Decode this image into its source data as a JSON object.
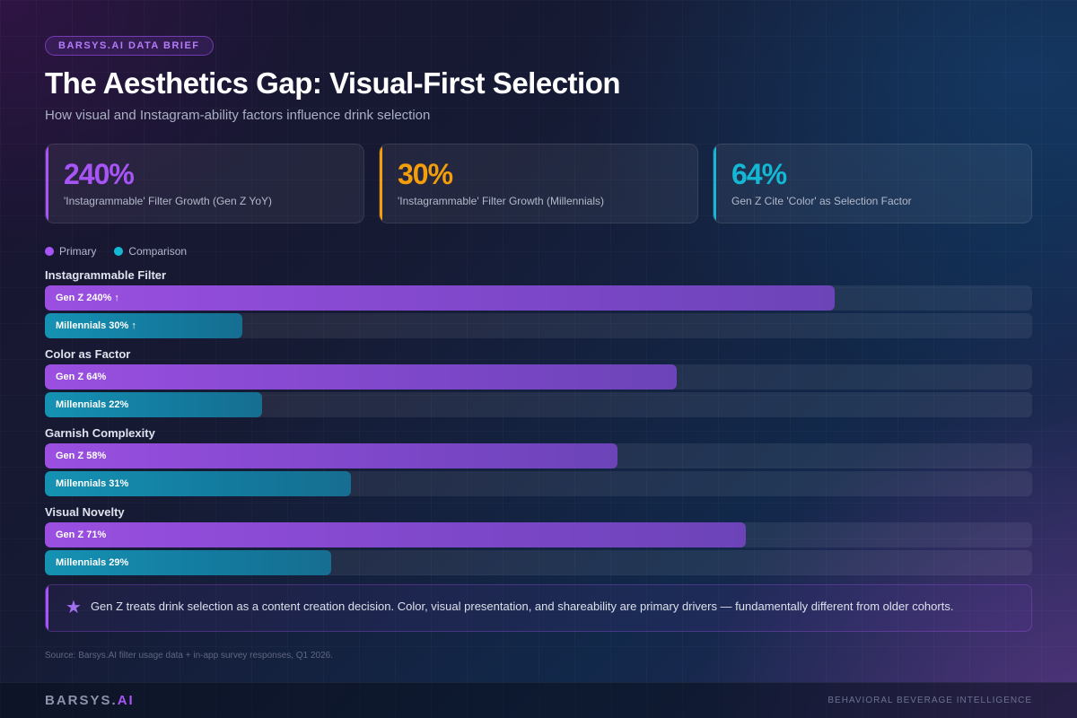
{
  "badge": "BARSYS.AI DATA BRIEF",
  "title": "The Aesthetics Gap: Visual-First Selection",
  "subtitle": "How visual and Instagram-ability factors influence drink selection",
  "stats": [
    {
      "value": "240%",
      "label": "'Instagrammable' Filter Growth (Gen Z YoY)",
      "color": "#a855f7"
    },
    {
      "value": "30%",
      "label": "'Instagrammable' Filter Growth (Millennials)",
      "color": "#f59e0b"
    },
    {
      "value": "64%",
      "label": "Gen Z Cite 'Color' as Selection Factor",
      "color": "#14b8d4"
    }
  ],
  "legend": [
    {
      "label": "Primary",
      "color": "#a855f7"
    },
    {
      "label": "Comparison",
      "color": "#14b8d4"
    }
  ],
  "chart_data": {
    "type": "bar",
    "orientation": "horizontal",
    "x_range": [
      0,
      100
    ],
    "categories": [
      "Instagrammable Filter",
      "Color as Factor",
      "Garnish Complexity",
      "Visual Novelty"
    ],
    "series": [
      {
        "name": "Gen Z",
        "role": "primary",
        "bar_fill_fraction": [
          0.8,
          0.64,
          0.58,
          0.71
        ],
        "labels": [
          "Gen Z 240% ↑",
          "Gen Z 64%",
          "Gen Z 58%",
          "Gen Z 71%"
        ]
      },
      {
        "name": "Millennials",
        "role": "comparison",
        "bar_fill_fraction": [
          0.2,
          0.22,
          0.31,
          0.29
        ],
        "labels": [
          "Millennials 30% ↑",
          "Millennials 22%",
          "Millennials 31%",
          "Millennials 29%"
        ]
      }
    ]
  },
  "insight": {
    "icon": "star-icon",
    "text": "Gen Z treats drink selection as a content creation decision. Color, visual presentation, and shareability are primary drivers — fundamentally different from older cohorts."
  },
  "source": "Source: Barsys.AI filter usage data + in-app survey responses, Q1 2026.",
  "footer": {
    "brand_main": "BARSYS.",
    "brand_accent": "AI",
    "tagline": "BEHAVIORAL BEVERAGE INTELLIGENCE"
  }
}
